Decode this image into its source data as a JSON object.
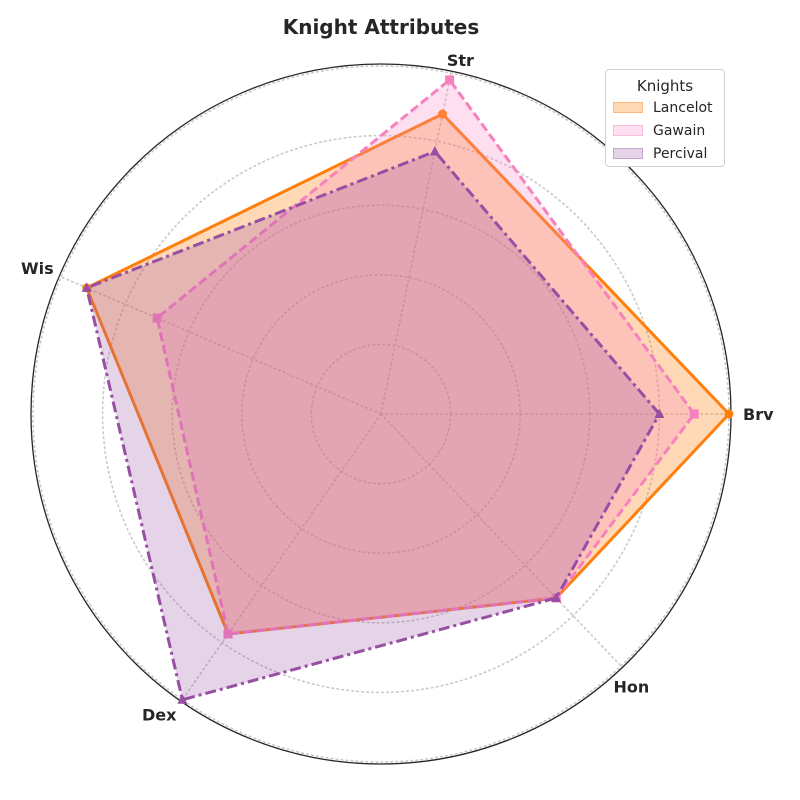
{
  "chart_data": {
    "type": "radar",
    "title": "Knight Attributes",
    "axes": [
      "Brv",
      "Str",
      "Wis",
      "Dex",
      "Hon"
    ],
    "rlim": [
      0,
      10
    ],
    "grid": true,
    "legend": {
      "title": "Knights",
      "placement": "top-right"
    },
    "series": [
      {
        "name": "Lancelot",
        "values": [
          10,
          8.8,
          9.2,
          7.7,
          7.3
        ],
        "color": "#ff7f0e",
        "linestyle": "solid",
        "marker": "circle"
      },
      {
        "name": "Gawain",
        "values": [
          9.0,
          9.8,
          7.0,
          7.7,
          7.3
        ],
        "color": "#f781bf",
        "linestyle": "dashed",
        "marker": "square"
      },
      {
        "name": "Percival",
        "values": [
          8.0,
          7.7,
          9.2,
          10.0,
          7.3
        ],
        "color": "#984ea3",
        "linestyle": "dashdot",
        "marker": "triangle"
      }
    ]
  }
}
